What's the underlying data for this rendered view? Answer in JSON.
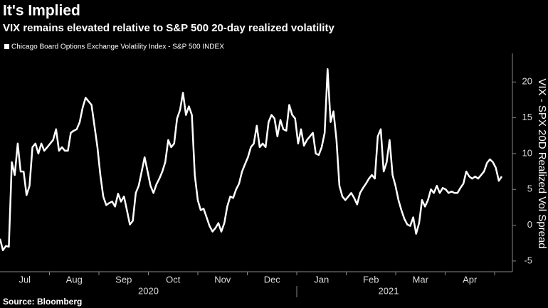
{
  "chart_data": {
    "type": "line",
    "title": "It's Implied",
    "subtitle": "VIX remains elevated relative to S&P 500 20-day realized volatility",
    "y_label": "VIX - SPX 20D Realized Vol Spread",
    "source": "Source: Bloomberg",
    "months": [
      "Jul",
      "Aug",
      "Sep",
      "Oct",
      "Nov",
      "Dec",
      "Jan",
      "Feb",
      "Mar",
      "Apr"
    ],
    "years": [
      "2020",
      "2021"
    ],
    "ylim": [
      -6.5,
      24
    ],
    "yticks": [
      -5,
      0,
      5,
      10,
      15,
      20
    ],
    "series": [
      {
        "name": "Chicago Board Options Exchange Volatility Index - S&P 500 INDEX",
        "color": "#ffffff",
        "values": [
          -1.9,
          -3.5,
          -2.9,
          -3,
          8.8,
          7,
          11.4,
          7.5,
          7.5,
          4.2,
          5.5,
          10.9,
          11.4,
          10,
          11.4,
          10.4,
          10.9,
          11.4,
          11.9,
          13.4,
          10.4,
          10.9,
          10.4,
          10.4,
          12.9,
          13.2,
          13.4,
          14.4,
          16.4,
          17.8,
          17.3,
          16.8,
          13.9,
          10.9,
          7,
          4,
          2.8,
          3.1,
          3.3,
          2.6,
          4.4,
          3.3,
          4,
          2.1,
          0.1,
          0.6,
          4.5,
          5.5,
          7.5,
          9.5,
          7.5,
          5.5,
          4.5,
          5.7,
          6.5,
          7.5,
          8.8,
          11.9,
          10.9,
          11.4,
          14.9,
          16.1,
          18.5,
          15.4,
          16.6,
          15.4,
          7,
          3.5,
          2.1,
          2.3,
          1.1,
          -0.1,
          -0.9,
          -0.4,
          0.3,
          -0.9,
          0.3,
          2.6,
          4,
          3.8,
          5,
          5.8,
          7.5,
          8.5,
          9.5,
          10.9,
          11.4,
          13.9,
          10.9,
          11.4,
          10.9,
          14.4,
          15.4,
          14.9,
          12.4,
          14.7,
          13.4,
          13.2,
          16.8,
          15.4,
          14.9,
          11.4,
          13.4,
          11.1,
          11.9,
          12.4,
          12.9,
          10,
          9.8,
          10.9,
          12.9,
          21.8,
          14.4,
          15.9,
          11.9,
          5.5,
          4,
          3.5,
          4,
          4.5,
          3.8,
          2.9,
          4.5,
          5.2,
          5.8,
          6.5,
          7,
          6.5,
          12.4,
          13.4,
          7.5,
          8.8,
          11.9,
          7,
          5.5,
          3.5,
          2.1,
          0.9,
          0.1,
          -0.1,
          1.1,
          -1.2,
          0.3,
          3.5,
          2.6,
          3.5,
          5,
          4.5,
          5.5,
          4.5,
          5.2,
          5,
          4.5,
          4.7,
          4.5,
          4.5,
          5.2,
          5.8,
          7.5,
          6.8,
          6.5,
          6.8,
          6.5,
          7,
          7.5,
          8.7,
          9.2,
          8.8,
          8,
          6.2,
          6.8
        ]
      }
    ]
  }
}
